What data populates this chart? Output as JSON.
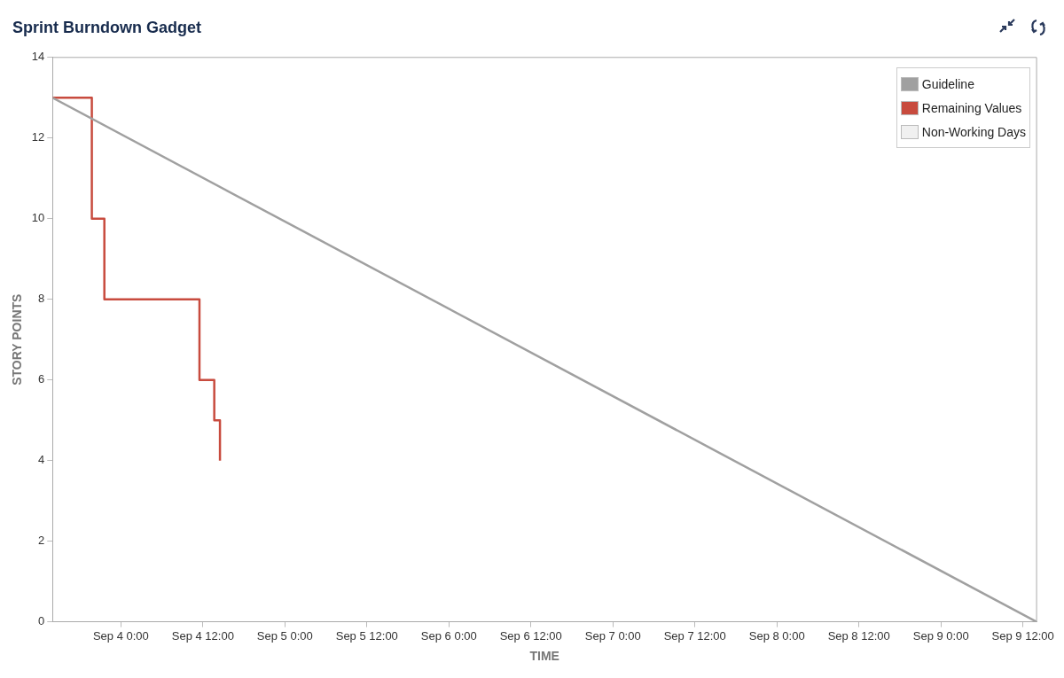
{
  "chart_data": {
    "type": "step",
    "title": "Sprint Burndown Gadget",
    "xlabel": "TIME",
    "ylabel": "STORY POINTS",
    "xlim": [
      "--09-03T14:00",
      "--09-09T14:00"
    ],
    "xticks": [
      {
        "value": "--09-04T00:00",
        "label": "Sep 4 0:00"
      },
      {
        "value": "--09-04T12:00",
        "label": "Sep 4 12:00"
      },
      {
        "value": "--09-05T00:00",
        "label": "Sep 5 0:00"
      },
      {
        "value": "--09-05T12:00",
        "label": "Sep 5 12:00"
      },
      {
        "value": "--09-06T00:00",
        "label": "Sep 6 0:00"
      },
      {
        "value": "--09-06T12:00",
        "label": "Sep 6 12:00"
      },
      {
        "value": "--09-07T00:00",
        "label": "Sep 7 0:00"
      },
      {
        "value": "--09-07T12:00",
        "label": "Sep 7 12:00"
      },
      {
        "value": "--09-08T00:00",
        "label": "Sep 8 0:00"
      },
      {
        "value": "--09-08T12:00",
        "label": "Sep 8 12:00"
      },
      {
        "value": "--09-09T00:00",
        "label": "Sep 9 0:00"
      },
      {
        "value": "--09-09T12:00",
        "label": "Sep 9 12:00"
      }
    ],
    "ylim": [
      0,
      14
    ],
    "yticks": [
      0,
      2,
      4,
      6,
      8,
      10,
      12,
      14
    ],
    "legend": "top right",
    "grid": false,
    "marker": "none",
    "series": [
      {
        "name": "Guideline",
        "type": "line",
        "color": "#a0a0a0",
        "x": [
          "--09-03T14:00",
          "--09-09T14:00"
        ],
        "values": [
          13,
          0
        ]
      },
      {
        "name": "Remaining Values",
        "type": "step",
        "color": "#c84b3e",
        "x": [
          "--09-03T14:00",
          "--09-03T19:45",
          "--09-03T21:35",
          "--09-04T11:30",
          "--09-04T13:40",
          "--09-04T14:30"
        ],
        "values": [
          13,
          10,
          8,
          6,
          5,
          4
        ]
      },
      {
        "name": "Non-Working Days",
        "type": "area",
        "color": "#f0f0f0"
      }
    ]
  }
}
